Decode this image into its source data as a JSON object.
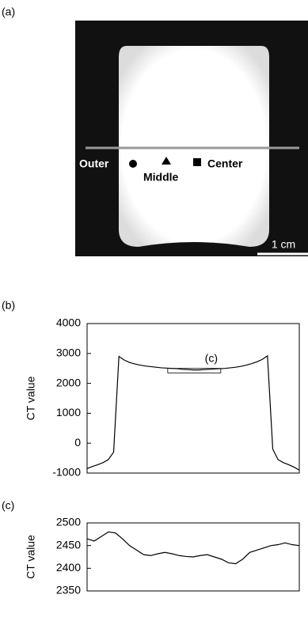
{
  "image_panel": {
    "panel_label": "(a)",
    "outer": "Outer",
    "middle": "Middle",
    "center": "Center",
    "scale": "1 cm"
  },
  "chart_data": [
    {
      "type": "line",
      "panel_label": "(b)",
      "y_label": "CT value",
      "annotation": "(c)",
      "color": "#000000",
      "ylim": [
        -1000,
        4000
      ],
      "yticks": [
        -1000,
        0,
        1000,
        2000,
        3000,
        4000
      ],
      "values": [
        -850,
        -780,
        -720,
        -650,
        -550,
        -300,
        2900,
        2780,
        2700,
        2650,
        2610,
        2580,
        2560,
        2540,
        2520,
        2510,
        2500,
        2490,
        2470,
        2460,
        2450,
        2450,
        2460,
        2470,
        2480,
        2490,
        2500,
        2520,
        2540,
        2570,
        2610,
        2660,
        2720,
        2800,
        2920,
        -200,
        -550,
        -650,
        -720,
        -800,
        -900
      ]
    },
    {
      "type": "line",
      "panel_label": "(c)",
      "y_label": "CT value",
      "color": "#000000",
      "ylim": [
        2350,
        2500
      ],
      "yticks": [
        2350,
        2400,
        2450,
        2500
      ],
      "values": [
        2465,
        2460,
        2470,
        2480,
        2478,
        2465,
        2450,
        2440,
        2430,
        2428,
        2432,
        2435,
        2432,
        2428,
        2426,
        2425,
        2428,
        2430,
        2425,
        2420,
        2412,
        2410,
        2420,
        2435,
        2440,
        2445,
        2450,
        2452,
        2456,
        2452,
        2450
      ]
    }
  ]
}
